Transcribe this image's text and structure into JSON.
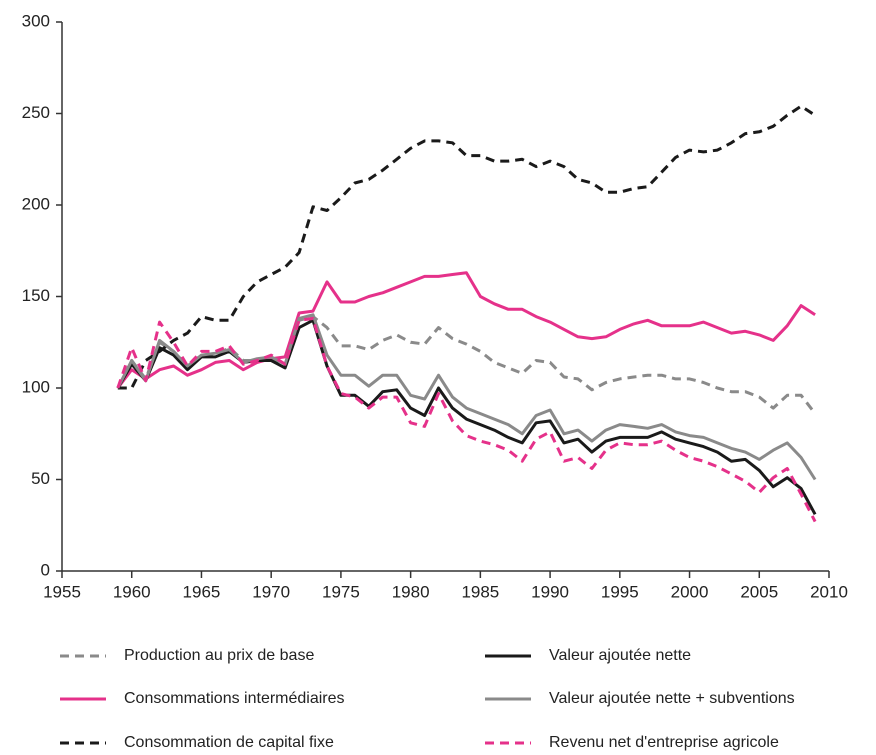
{
  "chart_data": {
    "type": "line",
    "x": [
      1959,
      1960,
      1961,
      1962,
      1963,
      1964,
      1965,
      1966,
      1967,
      1968,
      1969,
      1970,
      1971,
      1972,
      1973,
      1974,
      1975,
      1976,
      1977,
      1978,
      1979,
      1980,
      1981,
      1982,
      1983,
      1984,
      1985,
      1986,
      1987,
      1988,
      1989,
      1990,
      1991,
      1992,
      1993,
      1994,
      1995,
      1996,
      1997,
      1998,
      1999,
      2000,
      2001,
      2002,
      2003,
      2004,
      2005,
      2006,
      2007,
      2008,
      2009
    ],
    "xlim": [
      1955,
      2010
    ],
    "xticks": [
      1955,
      1960,
      1965,
      1970,
      1975,
      1980,
      1985,
      1990,
      1995,
      2000,
      2005,
      2010
    ],
    "ylim": [
      0,
      300
    ],
    "yticks": [
      0,
      50,
      100,
      150,
      200,
      250,
      300
    ],
    "series": [
      {
        "name": "Production au prix de base",
        "color": "#8a8a8a",
        "style": "dashed",
        "values": [
          100,
          115,
          105,
          125,
          120,
          112,
          118,
          118,
          122,
          115,
          115,
          117,
          112,
          137,
          139,
          133,
          123,
          123,
          121,
          126,
          129,
          125,
          124,
          133,
          127,
          124,
          120,
          114,
          111,
          108,
          115,
          114,
          106,
          105,
          99,
          103,
          105,
          106,
          107,
          107,
          105,
          105,
          103,
          100,
          98,
          98,
          95,
          89,
          96,
          96,
          86
        ]
      },
      {
        "name": "Consommations intermédiaires",
        "color": "#e5318a",
        "style": "solid",
        "values": [
          100,
          110,
          105,
          110,
          112,
          107,
          110,
          114,
          115,
          110,
          114,
          116,
          117,
          141,
          142,
          158,
          147,
          147,
          150,
          152,
          155,
          158,
          161,
          161,
          162,
          163,
          150,
          146,
          143,
          143,
          139,
          136,
          132,
          128,
          127,
          128,
          132,
          135,
          137,
          134,
          134,
          134,
          136,
          133,
          130,
          131,
          129,
          126,
          134,
          145,
          140
        ]
      },
      {
        "name": "Consommation de capital fixe",
        "color": "#1a1a1a",
        "style": "dashed",
        "values": [
          100,
          100,
          115,
          120,
          126,
          130,
          139,
          137,
          137,
          150,
          158,
          162,
          166,
          174,
          199,
          197,
          204,
          212,
          214,
          219,
          225,
          231,
          235,
          235,
          234,
          227,
          227,
          224,
          224,
          225,
          221,
          224,
          221,
          214,
          212,
          207,
          207,
          209,
          210,
          218,
          226,
          230,
          229,
          230,
          234,
          239,
          240,
          243,
          249,
          254,
          249
        ]
      },
      {
        "name": "Valeur ajoutée nette",
        "color": "#1a1a1a",
        "style": "solid",
        "values": [
          100,
          113,
          104,
          122,
          118,
          110,
          117,
          117,
          120,
          114,
          115,
          115,
          111,
          133,
          137,
          112,
          96,
          96,
          90,
          98,
          99,
          89,
          85,
          100,
          89,
          83,
          80,
          77,
          73,
          70,
          81,
          82,
          70,
          72,
          65,
          71,
          73,
          73,
          73,
          76,
          72,
          70,
          68,
          65,
          60,
          61,
          55,
          46,
          51,
          45,
          31
        ]
      },
      {
        "name": "Valeur ajoutée nette + subventions",
        "color": "#8a8a8a",
        "style": "solid",
        "values": [
          100,
          115,
          104,
          126,
          120,
          112,
          118,
          119,
          121,
          114,
          116,
          117,
          113,
          138,
          140,
          118,
          107,
          107,
          101,
          107,
          107,
          96,
          94,
          107,
          95,
          89,
          86,
          83,
          80,
          75,
          85,
          88,
          75,
          77,
          71,
          77,
          80,
          79,
          78,
          80,
          76,
          74,
          73,
          70,
          67,
          65,
          61,
          66,
          70,
          62,
          50
        ]
      },
      {
        "name": "Revenu net d'entreprise agricole",
        "color": "#e5318a",
        "style": "dashed",
        "values": [
          100,
          122,
          104,
          136,
          125,
          112,
          120,
          120,
          123,
          113,
          115,
          118,
          113,
          137,
          138,
          112,
          97,
          95,
          89,
          95,
          95,
          81,
          79,
          97,
          82,
          74,
          71,
          69,
          66,
          60,
          72,
          76,
          60,
          62,
          56,
          66,
          70,
          69,
          69,
          71,
          66,
          62,
          60,
          57,
          53,
          49,
          43,
          51,
          56,
          42,
          27
        ]
      }
    ]
  }
}
